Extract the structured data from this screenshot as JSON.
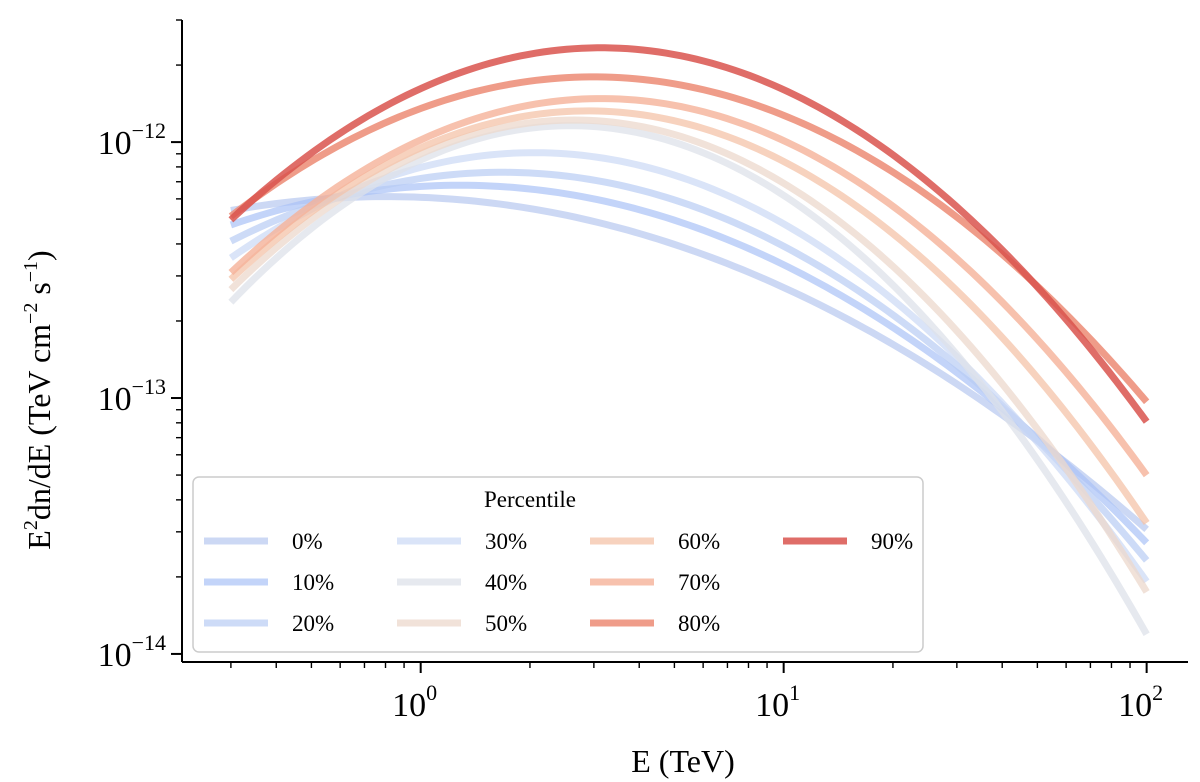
{
  "chart_data": {
    "type": "line",
    "title": "",
    "xlabel": "E (TeV)",
    "ylabel_parts": {
      "base": "E",
      "sup1": "2",
      "rest": "dn/dE (TeV cm",
      "sup2": "−2",
      "mid": " s",
      "sup3": "−1",
      "end": ")"
    },
    "xscale": "log",
    "yscale": "log",
    "xlim": [
      0.22,
      130
    ],
    "ylim": [
      9.3e-15,
      3e-12
    ],
    "xticks": [
      {
        "base": "10",
        "exp": "0",
        "value": 1
      },
      {
        "base": "10",
        "exp": "1",
        "value": 10
      },
      {
        "base": "10",
        "exp": "2",
        "value": 100
      }
    ],
    "yticks": [
      {
        "base": "10",
        "exp": "−14",
        "value": 1e-14
      },
      {
        "base": "10",
        "exp": "−13",
        "value": 1e-13
      },
      {
        "base": "10",
        "exp": "−12",
        "value": 1e-12
      }
    ],
    "legend": {
      "title": "Percentile",
      "placement": "lower-left",
      "columns": 4
    },
    "series": [
      {
        "name": "0%",
        "color": "#b6c8ef",
        "opacity": 0.7,
        "x": [
          0.3,
          1,
          3,
          10,
          30,
          100
        ],
        "y": [
          5.6e-13,
          5.9e-13,
          4.6e-13,
          2.75e-13,
          1.25e-13,
          2.9e-14
        ]
      },
      {
        "name": "10%",
        "color": "#aac2f6",
        "opacity": 0.7,
        "x": [
          0.3,
          1,
          3,
          10,
          30,
          100
        ],
        "y": [
          4.9e-13,
          6.5e-13,
          5.7e-13,
          3.4e-13,
          1.35e-13,
          2.6e-14
        ]
      },
      {
        "name": "20%",
        "color": "#b8ccf4",
        "opacity": 0.7,
        "x": [
          0.3,
          1,
          3,
          10,
          30,
          100
        ],
        "y": [
          4.3e-13,
          6.8e-13,
          6.7e-13,
          4.1e-13,
          1.45e-13,
          2.2e-14
        ]
      },
      {
        "name": "30%",
        "color": "#cad9f5",
        "opacity": 0.7,
        "x": [
          0.3,
          1,
          3,
          10,
          30,
          100
        ],
        "y": [
          3.7e-13,
          7.6e-13,
          8.1e-13,
          5e-13,
          1.6e-13,
          1.8e-14
        ]
      },
      {
        "name": "40%",
        "color": "#dde2ea",
        "opacity": 0.75,
        "x": [
          0.3,
          1,
          3,
          10,
          30,
          100
        ],
        "y": [
          2.7e-13,
          7.3e-13,
          9.9e-13,
          6.5e-13,
          2e-13,
          1e-14
        ]
      },
      {
        "name": "50%",
        "color": "#ecd8cc",
        "opacity": 0.75,
        "x": [
          0.3,
          1,
          3,
          10,
          30,
          100
        ],
        "y": [
          2.95e-13,
          7.8e-13,
          1.1e-12,
          7.4e-13,
          2.2e-13,
          1.55e-14
        ]
      },
      {
        "name": "60%",
        "color": "#f4c3a8",
        "opacity": 0.75,
        "x": [
          0.3,
          1,
          3,
          10,
          30,
          100
        ],
        "y": [
          3.2e-13,
          8.2e-13,
          1.25e-12,
          9.2e-13,
          2.9e-13,
          3e-14
        ]
      },
      {
        "name": "70%",
        "color": "#f5b298",
        "opacity": 0.8,
        "x": [
          0.3,
          1,
          3,
          10,
          30,
          100
        ],
        "y": [
          3.4e-13,
          8.8e-13,
          1.4e-12,
          1.1e-12,
          3.9e-13,
          4.6e-14
        ]
      },
      {
        "name": "80%",
        "color": "#ec8b74",
        "opacity": 0.85,
        "x": [
          0.3,
          1,
          3,
          10,
          30,
          100
        ],
        "y": [
          5.5e-13,
          1.2e-12,
          1.75e-12,
          1.4e-12,
          5.2e-13,
          9.3e-14
        ]
      },
      {
        "name": "90%",
        "color": "#d9534d",
        "opacity": 0.85,
        "x": [
          0.3,
          1,
          3,
          10,
          30,
          100
        ],
        "y": [
          5e-13,
          1.6e-12,
          2.3e-12,
          1.7e-12,
          5.3e-13,
          8.2e-14
        ]
      }
    ]
  }
}
